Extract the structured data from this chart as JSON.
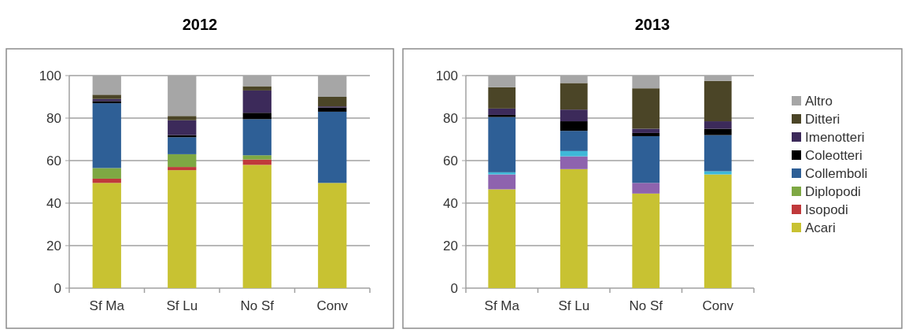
{
  "chart_data": [
    {
      "type": "bar",
      "stacked": true,
      "title": "2012",
      "categories": [
        "Sf Ma",
        "Sf Lu",
        "No Sf",
        "Conv"
      ],
      "ylim": [
        0,
        100
      ],
      "yticks": [
        0,
        20,
        40,
        60,
        80,
        100
      ],
      "grid": "y",
      "legend": false,
      "series": [
        {
          "color": "#c8c232",
          "values": [
            49.5,
            55.5,
            58,
            49.5
          ]
        },
        {
          "color": "#c0393b",
          "values": [
            2,
            1.5,
            2.5,
            0
          ]
        },
        {
          "color": "#7ea843",
          "values": [
            5,
            6,
            2,
            0
          ]
        },
        {
          "color": "#2e5f96",
          "values": [
            30.5,
            8,
            17,
            33.5
          ]
        },
        {
          "color": "#000000",
          "values": [
            1,
            1,
            3,
            2
          ]
        },
        {
          "color": "#3c2a5a",
          "values": [
            1,
            7,
            10.5,
            0.5
          ]
        },
        {
          "color": "#4b4527",
          "values": [
            2,
            2,
            2,
            4.5
          ]
        },
        {
          "color": "#a6a6a6",
          "values": [
            9,
            19,
            5,
            10
          ]
        }
      ]
    },
    {
      "type": "bar",
      "stacked": true,
      "title": "2013",
      "categories": [
        "Sf Ma",
        "Sf Lu",
        "No Sf",
        "Conv"
      ],
      "ylim": [
        0,
        100
      ],
      "yticks": [
        0,
        20,
        40,
        60,
        80,
        100
      ],
      "grid": "y",
      "legend": "right",
      "series": [
        {
          "name": "Acari",
          "color": "#c8c232",
          "values": [
            46.5,
            56,
            44.5,
            53.5
          ]
        },
        {
          "name": "Isopodi",
          "color": "#c0393b",
          "values": [
            null,
            null,
            null,
            null
          ]
        },
        {
          "name": "Diplopodi",
          "color": "#7ea843",
          "values": [
            null,
            null,
            null,
            null
          ]
        },
        {
          "color": "#8e63ae",
          "values": [
            7,
            6,
            5,
            0
          ]
        },
        {
          "color": "#3fb8d8",
          "values": [
            1,
            2.5,
            0,
            1.5
          ]
        },
        {
          "name": "Collemboli",
          "color": "#2e5f96",
          "values": [
            26,
            9.5,
            22,
            17
          ]
        },
        {
          "name": "Coleotteri",
          "color": "#000000",
          "values": [
            1,
            4.5,
            1.5,
            3
          ]
        },
        {
          "name": "Imenotteri",
          "color": "#3c2a5a",
          "values": [
            3,
            5.5,
            2,
            3.5
          ]
        },
        {
          "name": "Ditteri",
          "color": "#4b4527",
          "values": [
            10,
            12.5,
            19,
            19
          ]
        },
        {
          "name": "Altro",
          "color": "#a6a6a6",
          "values": [
            5.5,
            3.5,
            6,
            2.5
          ]
        }
      ]
    }
  ]
}
